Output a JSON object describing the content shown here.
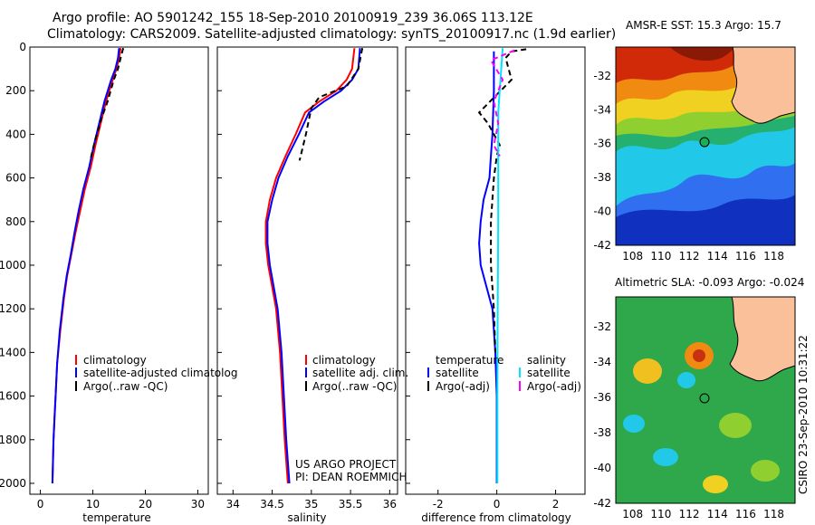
{
  "title": {
    "line1": "Argo profile: AO 5901242_155 18-Sep-2010 20100919_239 36.06S 113.12E",
    "line2": "Climatology: CARS2009. Satellite-adjusted climatology: synTS_20100917.nc (1.9d earlier)"
  },
  "credit": {
    "project": "US ARGO PROJECT",
    "pi": "PI: DEAN ROEMMICH",
    "stamp": "CSIRO 23-Sep-2010 10:31:22"
  },
  "colors": {
    "climatology": "#ff0000",
    "satellite": "#0000ff",
    "argo": "#000000",
    "sat_salinity": "#00e5ff",
    "argo_salinity": "#ff00ff",
    "land": "#f9c09a"
  },
  "chart_data": [
    {
      "type": "line",
      "panel": "temperature",
      "xlabel": "temperature",
      "xlim": [
        -2,
        32
      ],
      "xticks": [
        "0",
        "10",
        "20",
        "30"
      ],
      "ylim": [
        2050,
        0
      ],
      "yticks": [
        "0",
        "200",
        "400",
        "600",
        "800",
        "1000",
        "1200",
        "1400",
        "1600",
        "1800",
        "2000"
      ],
      "legend": [
        "climatology",
        "satellite-adjusted climatolog",
        "Argo(..raw -QC)"
      ],
      "legend_placement": "lower-right",
      "series": [
        {
          "name": "climatology",
          "color": "#ff0000",
          "style": "solid",
          "x": [
            15.3,
            15.0,
            14.5,
            13.8,
            12.5,
            11.5,
            10.5,
            9.6,
            8.5,
            7.6,
            6.7,
            5.9,
            5.1,
            4.5,
            3.8,
            3.2,
            2.9,
            2.7,
            2.5,
            2.4,
            2.3
          ],
          "depth": [
            5,
            50,
            100,
            150,
            250,
            350,
            450,
            550,
            650,
            750,
            850,
            950,
            1050,
            1150,
            1300,
            1450,
            1600,
            1700,
            1800,
            1900,
            2000
          ]
        },
        {
          "name": "satellite-adjusted climatolog",
          "color": "#0000ff",
          "style": "solid",
          "x": [
            15.0,
            14.8,
            14.3,
            13.5,
            12.2,
            11.2,
            10.2,
            9.3,
            8.2,
            7.3,
            6.5,
            5.8,
            5.0,
            4.4,
            3.7,
            3.2,
            2.9,
            2.7,
            2.5,
            2.4,
            2.3
          ],
          "depth": [
            5,
            50,
            100,
            150,
            250,
            350,
            450,
            550,
            650,
            750,
            850,
            950,
            1050,
            1150,
            1300,
            1450,
            1600,
            1700,
            1800,
            1900,
            2000
          ]
        },
        {
          "name": "Argo(..raw -QC)",
          "color": "#000000",
          "style": "dashed",
          "x": [
            15.8,
            15.4,
            14.8,
            14.0,
            12.8,
            11.6,
            10.4,
            9.5
          ],
          "depth": [
            5,
            40,
            100,
            150,
            250,
            330,
            430,
            520
          ]
        }
      ]
    },
    {
      "type": "line",
      "panel": "salinity",
      "xlabel": "salinity",
      "xlim": [
        33.8,
        36.1
      ],
      "xticks": [
        "34",
        "34.5",
        "35",
        "35.5",
        "36"
      ],
      "ylim": [
        2050,
        0
      ],
      "legend": [
        "climatology",
        "satellite adj. clim.",
        "Argo(..raw -QC)"
      ],
      "legend_placement": "lower-right",
      "series": [
        {
          "name": "climatology",
          "color": "#ff0000",
          "style": "solid",
          "x": [
            35.55,
            35.52,
            35.45,
            35.32,
            35.1,
            34.92,
            34.8,
            34.67,
            34.55,
            34.47,
            34.42,
            34.42,
            34.45,
            34.5,
            34.55,
            34.6,
            34.63,
            34.66,
            34.7
          ],
          "depth": [
            5,
            100,
            150,
            200,
            250,
            300,
            400,
            500,
            600,
            700,
            800,
            900,
            1000,
            1100,
            1200,
            1400,
            1600,
            1800,
            2000
          ]
        },
        {
          "name": "satellite adj. clim.",
          "color": "#0000ff",
          "style": "solid",
          "x": [
            35.62,
            35.6,
            35.52,
            35.38,
            35.16,
            34.97,
            34.84,
            34.7,
            34.58,
            34.5,
            34.44,
            34.44,
            34.47,
            34.52,
            34.57,
            34.62,
            34.65,
            34.68,
            34.72
          ],
          "depth": [
            5,
            100,
            150,
            200,
            250,
            300,
            400,
            500,
            600,
            700,
            800,
            900,
            1000,
            1100,
            1200,
            1400,
            1600,
            1800,
            2000
          ]
        },
        {
          "name": "Argo(..raw -QC)",
          "color": "#000000",
          "style": "dashed",
          "x": [
            35.65,
            35.6,
            35.45,
            35.1,
            35.0,
            34.93,
            34.85
          ],
          "depth": [
            5,
            100,
            180,
            230,
            280,
            400,
            520
          ]
        }
      ]
    },
    {
      "type": "line",
      "panel": "difference",
      "xlabel": "difference from climatology",
      "xlim": [
        -3.1,
        3.0
      ],
      "xticks": [
        "-2",
        "0",
        "2"
      ],
      "ylim": [
        2050,
        0
      ],
      "legend_headers": [
        "temperature",
        "salinity"
      ],
      "legend": [
        "satellite",
        "Argo(-adj)",
        "satellite",
        "Argo(-adj)"
      ],
      "legend_placement": "lower-center",
      "series": [
        {
          "name": "satellite",
          "group": "temperature",
          "color": "#0000ff",
          "style": "solid",
          "x": [
            -0.1,
            -0.1,
            -0.15,
            -0.2,
            -0.25,
            -0.45,
            -0.55,
            -0.6,
            -0.55,
            -0.35,
            -0.15,
            -0.05,
            0,
            0
          ],
          "depth": [
            20,
            200,
            400,
            500,
            600,
            700,
            800,
            900,
            1000,
            1100,
            1200,
            1400,
            1600,
            2000
          ]
        },
        {
          "name": "Argo(-adj)",
          "group": "temperature",
          "color": "#000000",
          "style": "dashed",
          "x": [
            1.0,
            0.5,
            0.3,
            0.5,
            -0.6,
            -0.3,
            0.1,
            0,
            -0.1,
            -0.2,
            -0.2,
            -0.1,
            -0.05
          ],
          "depth": [
            10,
            20,
            50,
            150,
            300,
            350,
            450,
            500,
            600,
            800,
            1000,
            1200,
            1400
          ]
        },
        {
          "name": "satellite",
          "group": "salinity",
          "color": "#00e5ff",
          "style": "solid",
          "x": [
            0.2,
            0.15,
            0.05,
            0.05,
            0.05,
            0.03,
            0.02,
            0.02
          ],
          "depth": [
            5,
            100,
            300,
            500,
            800,
            1200,
            1600,
            2000
          ]
        },
        {
          "name": "Argo(-adj)",
          "group": "salinity",
          "color": "#ff00ff",
          "style": "dashed",
          "x": [
            0.6,
            -0.2,
            0.2,
            -0.1,
            0.05,
            -0.1,
            0.1
          ],
          "depth": [
            15,
            60,
            150,
            250,
            350,
            450,
            500
          ]
        }
      ]
    },
    {
      "type": "heatmap",
      "panel": "sst_map",
      "title": "AMSR-E SST: 15.3 Argo: 15.7",
      "xlim": [
        106.8,
        119.5
      ],
      "ylim": [
        -42,
        -30.3
      ],
      "xticks": [
        "108",
        "110",
        "112",
        "114",
        "116",
        "118"
      ],
      "yticks": [
        "-32",
        "-34",
        "-36",
        "-38",
        "-40",
        "-42"
      ],
      "argo_location": {
        "lon": 113.12,
        "lat": -36.06
      }
    },
    {
      "type": "heatmap",
      "panel": "sla_map",
      "title": "Altimetric SLA: -0.093 Argo: -0.024",
      "xlim": [
        106.8,
        119.5
      ],
      "ylim": [
        -42,
        -30.3
      ],
      "xticks": [
        "108",
        "110",
        "112",
        "114",
        "116",
        "118"
      ],
      "yticks": [
        "-32",
        "-34",
        "-36",
        "-38",
        "-40",
        "-42"
      ],
      "argo_location": {
        "lon": 113.12,
        "lat": -36.06
      }
    }
  ]
}
